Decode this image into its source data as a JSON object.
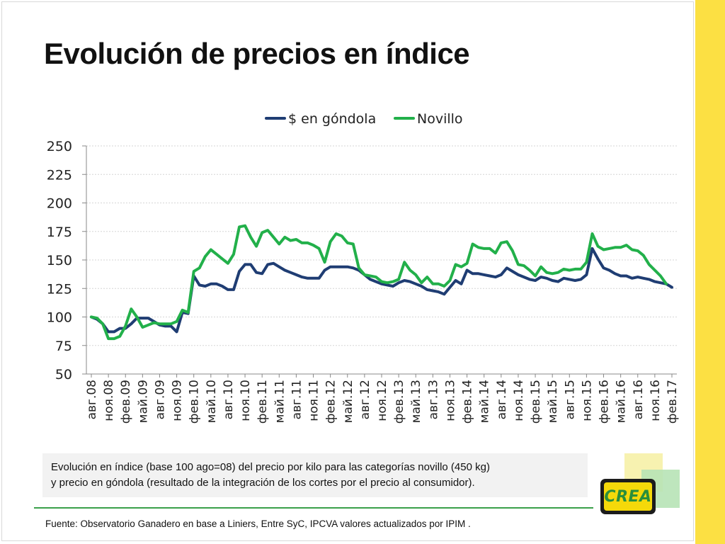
{
  "slide": {
    "title": "Evolución de precios en índice"
  },
  "caption": {
    "line1": "Evolución en  índice (base 100 ago=08) del precio por kilo para las categorías novillo (450 kg)",
    "line2": "y  precio en góndola (resultado de la integración de los cortes por el precio al consumidor)."
  },
  "source": "Fuente: Observatorio Ganadero en base a Liniers, Entre SyC, IPCVA  valores actualizados por IPIM .",
  "logo": {
    "text": "CREA"
  },
  "colors": {
    "gondola": "#1f3d73",
    "novillo": "#22b04a",
    "accent": "#fce043"
  },
  "chart_data": {
    "type": "line",
    "title": "",
    "xlabel": "",
    "ylabel": "",
    "ylim": [
      50,
      250
    ],
    "yticks": [
      50,
      75,
      100,
      125,
      150,
      175,
      200,
      225,
      250
    ],
    "grid": true,
    "legend_position": "top-center",
    "x_start": "авг.08",
    "x_tick_labels": [
      "авг.08",
      "ноя.08",
      "фев.09",
      "май.09",
      "авг.09",
      "ноя.09",
      "фев.10",
      "май.10",
      "авг.10",
      "ноя.10",
      "фев.11",
      "май.11",
      "авг.11",
      "ноя.11",
      "фев.12",
      "май.12",
      "авг.12",
      "ноя.12",
      "фев.13",
      "май.13",
      "авг.13",
      "ноя.13",
      "фев.14",
      "май.14",
      "авг.14",
      "ноя.14",
      "фев.15",
      "май.15",
      "авг.15",
      "ноя.15",
      "фев.16",
      "май.16",
      "авг.16",
      "ноя.16",
      "фев.17"
    ],
    "series": [
      {
        "name": "$ en góndola",
        "color": "#1f3d73",
        "values": [
          100,
          98,
          94,
          87,
          87,
          90,
          90,
          94,
          99,
          99,
          99,
          96,
          93,
          92,
          92,
          87,
          104,
          103,
          136,
          128,
          127,
          129,
          129,
          127,
          124,
          124,
          140,
          146,
          146,
          139,
          138,
          146,
          147,
          144,
          141,
          139,
          137,
          135,
          134,
          134,
          134,
          141,
          144,
          144,
          144,
          144,
          143,
          141,
          137,
          133,
          131,
          129,
          128,
          127,
          130,
          132,
          131,
          129,
          127,
          124,
          123,
          122,
          120,
          126,
          132,
          129,
          141,
          138,
          138,
          137,
          136,
          135,
          137,
          143,
          140,
          137,
          135,
          133,
          132,
          135,
          134,
          132,
          131,
          134,
          133,
          132,
          133,
          137,
          160,
          151,
          143,
          141,
          138,
          136,
          136,
          134,
          135,
          134,
          133,
          131,
          130,
          129,
          126
        ]
      },
      {
        "name": "Novillo",
        "color": "#22b04a",
        "values": [
          100,
          99,
          94,
          81,
          81,
          83,
          92,
          107,
          100,
          91,
          93,
          95,
          94,
          94,
          94,
          96,
          106,
          104,
          140,
          143,
          153,
          159,
          155,
          151,
          147,
          155,
          179,
          180,
          170,
          162,
          174,
          176,
          170,
          164,
          170,
          167,
          168,
          165,
          165,
          163,
          160,
          148,
          166,
          173,
          171,
          165,
          164,
          143,
          137,
          136,
          135,
          131,
          130,
          131,
          133,
          148,
          141,
          137,
          130,
          135,
          129,
          129,
          127,
          132,
          146,
          144,
          147,
          164,
          161,
          160,
          160,
          156,
          165,
          166,
          158,
          146,
          145,
          141,
          136,
          144,
          139,
          138,
          139,
          142,
          141,
          142,
          142,
          148,
          173,
          162,
          159,
          160,
          161,
          161,
          163,
          159,
          158,
          154,
          146,
          141,
          136,
          129
        ]
      }
    ]
  }
}
